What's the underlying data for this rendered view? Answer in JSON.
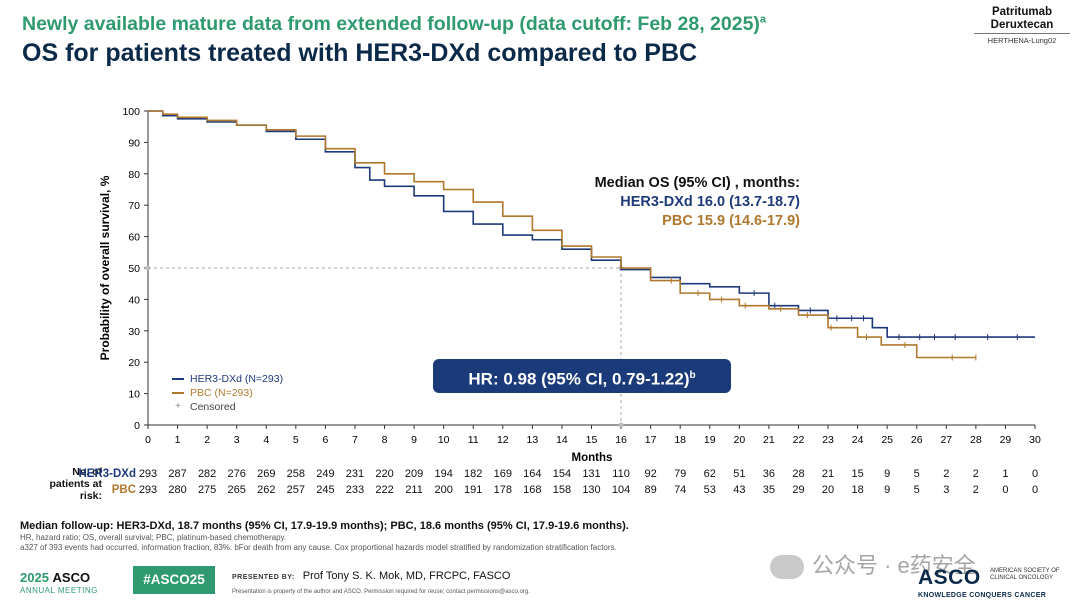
{
  "header": {
    "kicker": "Newly available mature data from extended follow-up (data cutoff: Feb 28, 2025)",
    "kicker_sup": "a",
    "title": "OS for patients treated with HER3-DXd compared to PBC",
    "brand_line1": "Patritumab",
    "brand_line2": "Deruxtecan",
    "brand_line3": "HERTHENA-Lung02"
  },
  "chart_data": {
    "type": "line",
    "subtype": "kaplan-meier",
    "xlabel": "Months",
    "ylabel": "Probability of overall survival, %",
    "xlim": [
      0,
      30
    ],
    "ylim": [
      0,
      100
    ],
    "x_ticks": [
      0,
      1,
      2,
      3,
      4,
      5,
      6,
      7,
      8,
      9,
      10,
      11,
      12,
      13,
      14,
      15,
      16,
      17,
      18,
      19,
      20,
      21,
      22,
      23,
      24,
      25,
      26,
      27,
      28,
      29,
      30
    ],
    "y_ticks": [
      0,
      10,
      20,
      30,
      40,
      50,
      60,
      70,
      80,
      90,
      100
    ],
    "grid": false,
    "legend_position": "bottom-left",
    "reference": {
      "y": 50,
      "x": 16
    },
    "series": [
      {
        "name": "HER3-DXd (N=293)",
        "color": "#1f3a7a",
        "points": [
          [
            0,
            100
          ],
          [
            0.5,
            98.5
          ],
          [
            1,
            97.5
          ],
          [
            2,
            96.5
          ],
          [
            3,
            95.5
          ],
          [
            4,
            93.5
          ],
          [
            5,
            91
          ],
          [
            6,
            87
          ],
          [
            7,
            82
          ],
          [
            7.5,
            78
          ],
          [
            8,
            76
          ],
          [
            9,
            73
          ],
          [
            10,
            68
          ],
          [
            11,
            64
          ],
          [
            12,
            60.5
          ],
          [
            13,
            59
          ],
          [
            14,
            56
          ],
          [
            15,
            52.5
          ],
          [
            16,
            49.5
          ],
          [
            17,
            47
          ],
          [
            18,
            45
          ],
          [
            19,
            44
          ],
          [
            20,
            42
          ],
          [
            21,
            38
          ],
          [
            22,
            36.5
          ],
          [
            23,
            34
          ],
          [
            24,
            34
          ],
          [
            24.5,
            31
          ],
          [
            25,
            28
          ],
          [
            26,
            28
          ],
          [
            27,
            28
          ],
          [
            28,
            28
          ],
          [
            29,
            28
          ],
          [
            30,
            28
          ]
        ],
        "censor_x": [
          20.5,
          21.2,
          22.4,
          23.3,
          23.8,
          24.2,
          25.4,
          26.1,
          26.6,
          27.3,
          28.4,
          29.4
        ]
      },
      {
        "name": "PBC (N=293)",
        "color": "#b0782d",
        "points": [
          [
            0,
            100
          ],
          [
            0.5,
            99
          ],
          [
            1,
            98
          ],
          [
            2,
            97
          ],
          [
            3,
            95.5
          ],
          [
            4,
            94
          ],
          [
            5,
            92
          ],
          [
            6,
            88
          ],
          [
            7,
            83.5
          ],
          [
            8,
            80
          ],
          [
            9,
            77.5
          ],
          [
            10,
            75
          ],
          [
            11,
            71
          ],
          [
            12,
            66.5
          ],
          [
            13,
            62
          ],
          [
            14,
            57
          ],
          [
            15,
            53.5
          ],
          [
            16,
            50
          ],
          [
            17,
            46
          ],
          [
            18,
            42
          ],
          [
            19,
            40
          ],
          [
            20,
            38
          ],
          [
            21,
            37
          ],
          [
            22,
            35
          ],
          [
            23,
            31
          ],
          [
            24,
            28
          ],
          [
            24.8,
            25.5
          ],
          [
            25.5,
            25.5
          ],
          [
            26,
            21.5
          ],
          [
            27,
            21.5
          ],
          [
            28,
            21.5
          ]
        ],
        "censor_x": [
          17.7,
          18.6,
          19.4,
          20.2,
          21.4,
          22.3,
          23.1,
          24.3,
          25.6,
          27.2,
          28.0
        ]
      },
      {
        "name": "Censored",
        "color": "#999999"
      }
    ]
  },
  "median": {
    "heading": "Median OS (95% CI) , months:",
    "her3": "HER3-DXd 16.0 (13.7-18.7)",
    "pbc": "PBC 15.9 (14.6-17.9)"
  },
  "hr": {
    "text": "HR: 0.98 (95% CI, 0.79-1.22)",
    "sup": "b"
  },
  "legend": {
    "her3": "HER3-DXd (N=293)",
    "pbc": "PBC (N=293)",
    "censored": "Censored"
  },
  "risk_table": {
    "heading": [
      "No. of",
      "patients at",
      "risk:"
    ],
    "rows": [
      {
        "label": "HER3-DXd",
        "color": "#1f3a7a",
        "values": [
          293,
          287,
          282,
          276,
          269,
          258,
          249,
          231,
          220,
          209,
          194,
          182,
          169,
          164,
          154,
          131,
          110,
          92,
          79,
          62,
          51,
          36,
          28,
          21,
          15,
          9,
          5,
          2,
          2,
          1,
          0
        ]
      },
      {
        "label": "PBC",
        "color": "#b0782d",
        "values": [
          293,
          280,
          275,
          265,
          262,
          257,
          245,
          233,
          222,
          211,
          200,
          191,
          178,
          168,
          158,
          130,
          104,
          89,
          74,
          53,
          43,
          35,
          29,
          20,
          18,
          9,
          5,
          3,
          2,
          0,
          0
        ]
      }
    ]
  },
  "footnotes": {
    "line1": "Median follow-up: HER3-DXd, 18.7 months (95% CI, 17.9-19.9 months); PBC, 18.6 months (95% CI, 17.9-19.6 months).",
    "line2": "HR, hazard ratio; OS, overall survival; PBC, platinum-based chemotherapy.",
    "line3": "a327 of 393 events had occurred, information fraction, 83%. bFor death from any cause. Cox proportional hazards model stratified by randomization stratification factors."
  },
  "footer": {
    "year": "2025",
    "asco": "ASCO",
    "meeting": "ANNUAL MEETING",
    "hashtag": "#ASCO25",
    "presented_by": "PRESENTED BY:",
    "presenter": "Prof Tony S. K. Mok, MD, FRCPC, FASCO",
    "note": "Presentation is property of the author and ASCO. Permission required for reuse; contact permissions@asco.org.",
    "logo": "ASCO",
    "logo_sub1": "AMERICAN SOCIETY OF CLINICAL ONCOLOGY",
    "logo_sub2": "KNOWLEDGE CONQUERS CANCER",
    "watermark": "公众号 · e药安全"
  }
}
